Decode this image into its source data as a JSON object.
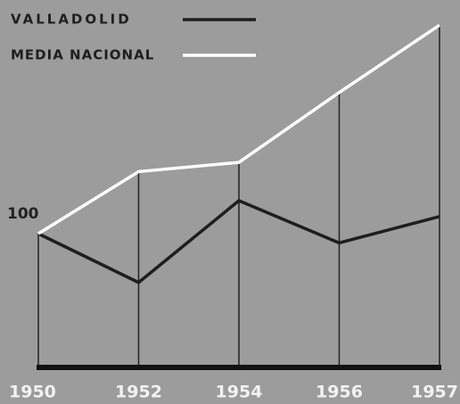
{
  "chart_data": {
    "type": "line",
    "categories": [
      "1950",
      "1952",
      "1954",
      "1956",
      "1957"
    ],
    "series": [
      {
        "name": "VALLADOLID",
        "color": "#1e1e1e",
        "values": [
          100,
          63,
          125,
          93,
          113
        ]
      },
      {
        "name": "MEDIA NACIONAL",
        "color": "#ffffff",
        "values": [
          100,
          147,
          154,
          207,
          258
        ]
      }
    ],
    "ylim": [
      0,
      265
    ],
    "yticks": [
      100
    ],
    "grid": false
  }
}
